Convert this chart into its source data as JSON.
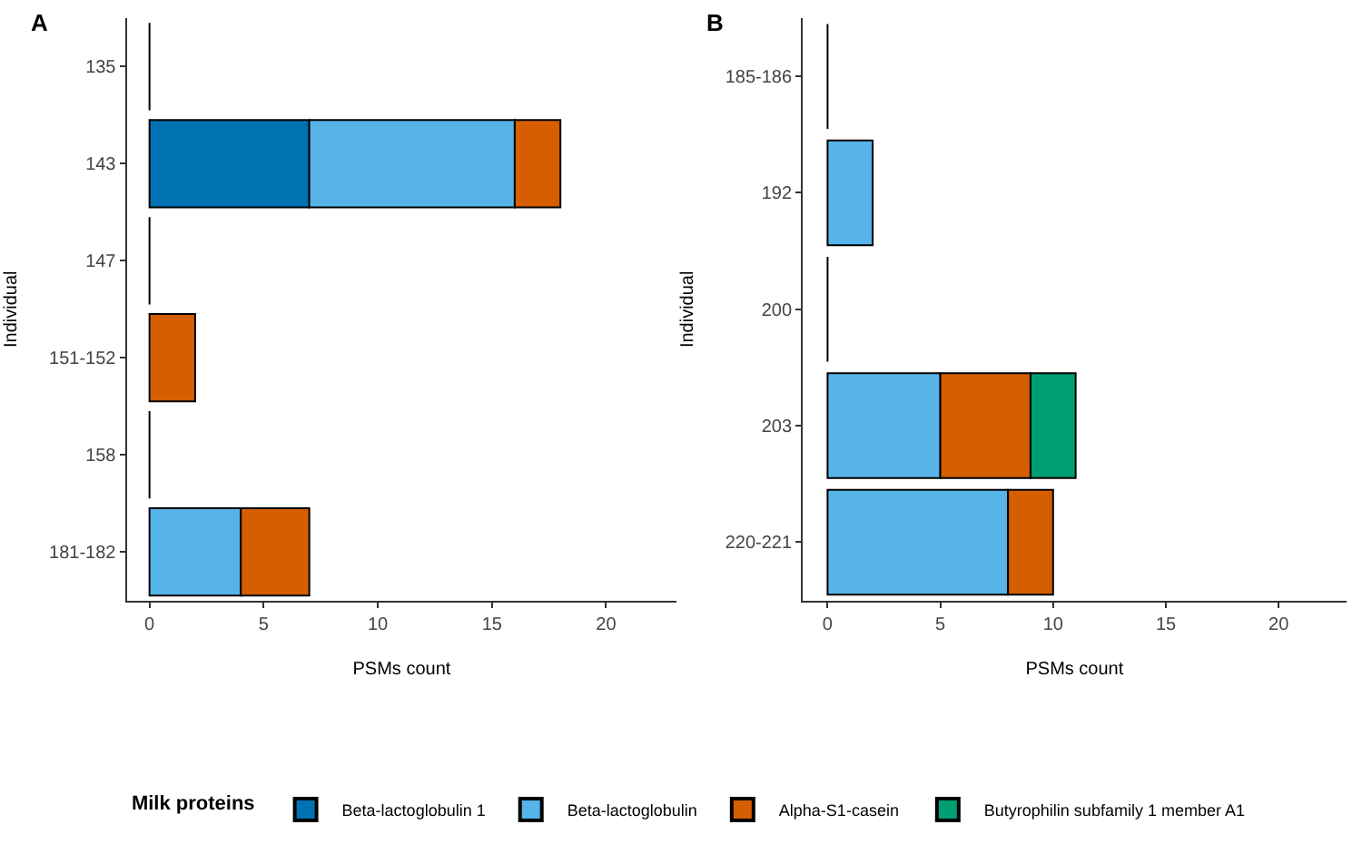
{
  "chart_data": [
    {
      "type": "bar",
      "title": "A",
      "orientation": "horizontal",
      "stacked": true,
      "xlabel": "PSMs count",
      "ylabel": "Individual",
      "legend_title": "Milk proteins",
      "legend": "bottom",
      "grid": false,
      "categories": [
        "135",
        "143",
        "147",
        "151-152",
        "158",
        "181-182"
      ],
      "xlim": [
        -1,
        23.1
      ],
      "xticks": [
        0,
        5,
        10,
        15,
        20
      ],
      "series": [
        {
          "color": "#000000",
          "values": [
            0,
            null,
            0,
            null,
            0,
            null
          ]
        },
        {
          "name": "Beta-lactoglobulin 1",
          "color": "#0072b2",
          "values": [
            null,
            7,
            null,
            null,
            null,
            null
          ]
        },
        {
          "name": "Beta-lactoglobulin",
          "color": "#56b4e9",
          "values": [
            null,
            9,
            null,
            null,
            null,
            4
          ]
        },
        {
          "name": "Alpha-S1-casein",
          "color": "#d55e00",
          "values": [
            null,
            2,
            null,
            2,
            null,
            3
          ]
        }
      ]
    },
    {
      "type": "bar",
      "title": "B",
      "orientation": "horizontal",
      "stacked": true,
      "xlabel": "PSMs count",
      "ylabel": "Individual",
      "legend": "bottom",
      "grid": false,
      "categories": [
        "185-186",
        "192",
        "200",
        "203",
        "220-221"
      ],
      "xlim": [
        -1.1,
        23
      ],
      "xticks": [
        0,
        5,
        10,
        15,
        20
      ],
      "series": [
        {
          "color": "#000000",
          "values": [
            0,
            null,
            0,
            null,
            null
          ]
        },
        {
          "name": "Beta-lactoglobulin",
          "color": "#56b4e9",
          "values": [
            null,
            2,
            null,
            5,
            8
          ]
        },
        {
          "name": "Alpha-S1-casein",
          "color": "#d55e00",
          "values": [
            null,
            null,
            null,
            4,
            2
          ]
        },
        {
          "name": "Butyrophilin subfamily 1 member A1",
          "color": "#009e73",
          "values": [
            null,
            null,
            null,
            2,
            null
          ]
        }
      ]
    }
  ]
}
